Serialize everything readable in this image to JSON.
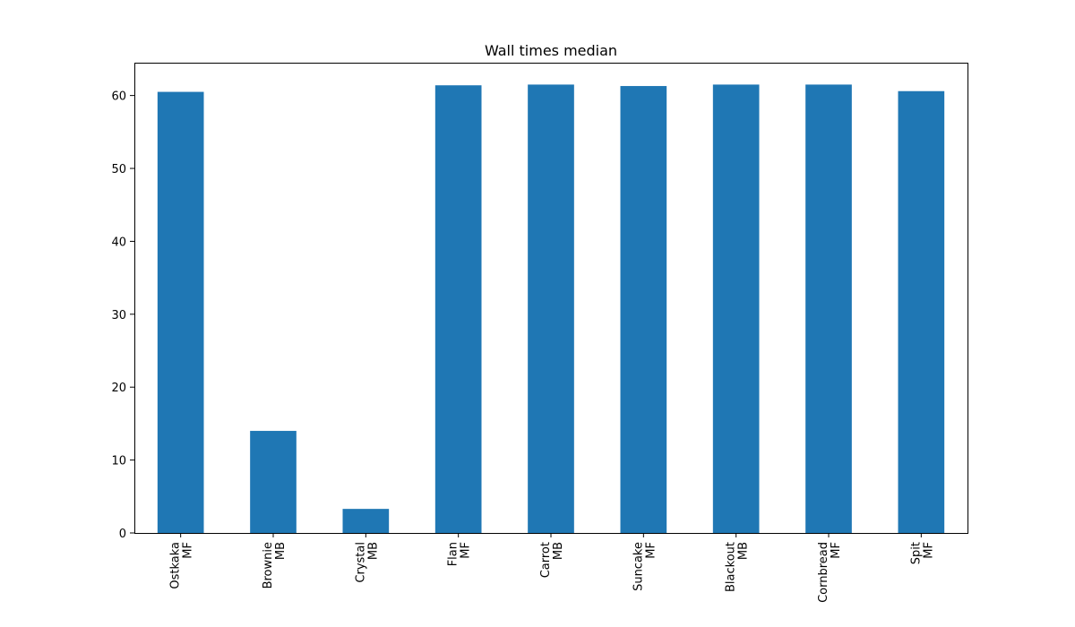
{
  "chart_data": {
    "type": "bar",
    "title": "Wall times median",
    "xlabel": "",
    "ylabel": "",
    "categories": [
      [
        "Ostkaka",
        "MF"
      ],
      [
        "Brownie",
        "MB"
      ],
      [
        "Crystal",
        "MB"
      ],
      [
        "Flan",
        "MF"
      ],
      [
        "Carrot",
        "MB"
      ],
      [
        "Suncake",
        "MF"
      ],
      [
        "Blackout",
        "MB"
      ],
      [
        "Cornbread",
        "MF"
      ],
      [
        "Spit",
        "MF"
      ]
    ],
    "values": [
      60.5,
      14.0,
      3.3,
      61.4,
      61.5,
      61.3,
      61.5,
      61.5,
      60.6
    ],
    "ylim": [
      0,
      64.5
    ],
    "yticks": [
      0,
      10,
      20,
      30,
      40,
      50,
      60
    ],
    "bar_color": "#1f77b4",
    "grid": false,
    "legend": false
  }
}
